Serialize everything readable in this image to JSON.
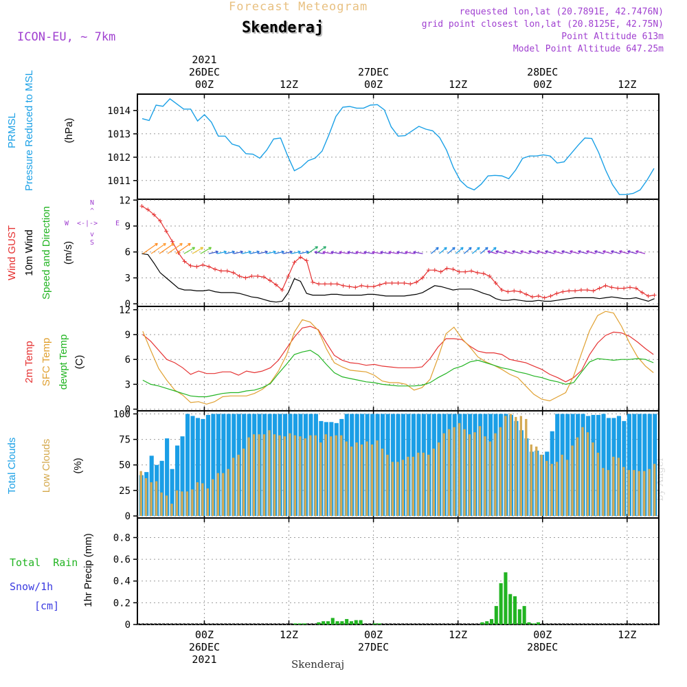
{
  "header": {
    "title": "Forecast Meteogram",
    "location": "Skenderaj",
    "model": "ICON-EU, ~ 7km",
    "requested": "requested lon,lat (20.7891E, 42.7476N)",
    "gridpoint": "grid point closest lon,lat (20.8125E, 42.75N)",
    "point_altitude": "Point Altitude 613m",
    "model_altitude": "Model Point Altitude 647.25m",
    "footer": "Skenderaj",
    "watermark": "by Angel",
    "compass": {
      "n": "N",
      "s": "S",
      "w": "W",
      "e": "E",
      "row": "<-|->",
      "up": "^",
      "down": "v"
    }
  },
  "time_axis": {
    "top_labels": [
      {
        "l1": "2021",
        "l2": "26DEC",
        "l3": "00Z"
      },
      {
        "l1": "",
        "l2": "",
        "l3": "12Z"
      },
      {
        "l1": "",
        "l2": "27DEC",
        "l3": "00Z"
      },
      {
        "l1": "",
        "l2": "",
        "l3": "12Z"
      },
      {
        "l1": "",
        "l2": "28DEC",
        "l3": "00Z"
      },
      {
        "l1": "",
        "l2": "",
        "l3": "12Z"
      }
    ],
    "bottom_labels": [
      {
        "l1": "00Z",
        "l2": "26DEC",
        "l3": "2021"
      },
      {
        "l1": "12Z",
        "l2": "",
        "l3": ""
      },
      {
        "l1": "00Z",
        "l2": "27DEC",
        "l3": ""
      },
      {
        "l1": "12Z",
        "l2": "",
        "l3": ""
      },
      {
        "l1": "00Z",
        "l2": "28DEC",
        "l3": ""
      },
      {
        "l1": "12Z",
        "l2": "",
        "l3": ""
      }
    ],
    "hours_before_first_tick": 9.5,
    "hours_after_last_tick": 4.5
  },
  "panel_labels": {
    "pressure": [
      {
        "text": "PRMSL",
        "color": "#1aa0e6"
      },
      {
        "text": "Pressure Reduced to MSL",
        "color": "#1aa0e6"
      },
      {
        "text": "(hPa)",
        "color": "#000000"
      }
    ],
    "wind": [
      {
        "text": "Wind GUST",
        "color": "#e53232"
      },
      {
        "text": "10m Wind",
        "color": "#000000"
      },
      {
        "text": "Speed and Direction",
        "color": "#22b422"
      },
      {
        "text": "(m/s)",
        "color": "#000000"
      }
    ],
    "temp": [
      {
        "text": "2m Temp",
        "color": "#e53232"
      },
      {
        "text": "SFC Temp",
        "color": "#e0a030"
      },
      {
        "text": "dewpt Temp",
        "color": "#22b422"
      },
      {
        "text": "(C)",
        "color": "#000000"
      }
    ],
    "clouds": [
      {
        "text": "Total Clouds",
        "color": "#1aa0e6"
      },
      {
        "text": "Low Clouds",
        "color": "#d4a84a"
      },
      {
        "text": "(%)",
        "color": "#000000"
      }
    ],
    "precip_left": [
      {
        "text": "Total  Rain",
        "color": "#22b422"
      },
      {
        "text": "Snow/1h",
        "color": "#3a3ae0"
      },
      {
        "text": "[cm]",
        "color": "#3a3ae0"
      }
    ],
    "precip_axis": "1hr Precip (mm)"
  },
  "colors": {
    "pressure": "#1aa0e6",
    "gust": "#e53232",
    "wind": "#000000",
    "temp2m": "#e53232",
    "sfctemp": "#e0a030",
    "dewpt": "#22b422",
    "total_clouds": "#1a9ee6",
    "low_clouds": "#d4aa55",
    "rain": "#22b422",
    "header_title": "#e8c080",
    "header_info": "#a040d0",
    "grid": "#9a9a9a"
  },
  "chart_data": [
    {
      "type": "line",
      "name": "pressure",
      "ylabel": "(hPa)",
      "ylim": [
        1010.2,
        1014.7
      ],
      "yticks": [
        1011,
        1012,
        1013,
        1014
      ],
      "series": [
        {
          "name": "PRMSL",
          "values": [
            1013.65,
            1013.57,
            1014.23,
            1014.18,
            1014.5,
            1014.28,
            1014.06,
            1014.06,
            1013.55,
            1013.82,
            1013.5,
            1012.9,
            1012.9,
            1012.56,
            1012.47,
            1012.15,
            1012.13,
            1011.96,
            1012.3,
            1012.78,
            1012.82,
            1012.08,
            1011.42,
            1011.58,
            1011.85,
            1011.96,
            1012.26,
            1012.96,
            1013.74,
            1014.14,
            1014.17,
            1014.1,
            1014.1,
            1014.23,
            1014.25,
            1014.03,
            1013.3,
            1012.9,
            1012.92,
            1013.12,
            1013.32,
            1013.2,
            1013.13,
            1012.84,
            1012.3,
            1011.55,
            1011.0,
            1010.72,
            1010.6,
            1010.84,
            1011.2,
            1011.22,
            1011.2,
            1011.08,
            1011.45,
            1011.95,
            1012.05,
            1012.05,
            1012.1,
            1012.05,
            1011.75,
            1011.8,
            1012.15,
            1012.5,
            1012.82,
            1012.8,
            1012.2,
            1011.45,
            1010.82,
            1010.4,
            1010.4,
            1010.45,
            1010.6,
            1011.02,
            1011.52
          ]
        }
      ]
    },
    {
      "type": "line",
      "name": "wind",
      "ylabel": "(m/s)",
      "ylim": [
        -0.3,
        12.1
      ],
      "yticks": [
        0,
        3,
        6,
        9,
        12
      ],
      "series": [
        {
          "name": "Wind GUST",
          "values": [
            11.3,
            10.9,
            10.3,
            9.6,
            8.4,
            7.2,
            5.9,
            4.9,
            4.4,
            4.3,
            4.5,
            4.3,
            4.0,
            3.8,
            3.8,
            3.6,
            3.2,
            3.0,
            3.2,
            3.2,
            3.1,
            2.7,
            2.2,
            1.6,
            3.2,
            4.8,
            5.4,
            5.0,
            2.5,
            2.3,
            2.3,
            2.3,
            2.3,
            2.1,
            2.0,
            1.9,
            2.1,
            2.0,
            2.0,
            2.2,
            2.4,
            2.4,
            2.4,
            2.4,
            2.3,
            2.5,
            3.0,
            3.9,
            3.9,
            3.7,
            4.1,
            4.0,
            3.7,
            3.7,
            3.8,
            3.6,
            3.5,
            3.2,
            2.4,
            1.6,
            1.4,
            1.5,
            1.4,
            1.1,
            0.8,
            0.9,
            0.7,
            0.9,
            1.2,
            1.4,
            1.5,
            1.5,
            1.6,
            1.6,
            1.5,
            1.8,
            2.1,
            1.9,
            1.8,
            1.8,
            1.9,
            1.8,
            1.3,
            0.9,
            1.0
          ]
        },
        {
          "name": "10m Wind",
          "values": [
            5.8,
            5.7,
            4.7,
            3.6,
            3.0,
            2.4,
            1.8,
            1.6,
            1.6,
            1.5,
            1.5,
            1.6,
            1.4,
            1.3,
            1.3,
            1.3,
            1.2,
            1.0,
            0.8,
            0.7,
            0.5,
            0.3,
            0.2,
            0.3,
            1.3,
            2.9,
            2.6,
            1.2,
            1.0,
            1.0,
            1.0,
            1.1,
            1.1,
            1.0,
            1.0,
            1.0,
            1.0,
            1.1,
            1.1,
            1.0,
            0.9,
            0.9,
            0.9,
            0.9,
            1.0,
            1.1,
            1.3,
            1.7,
            2.1,
            2.0,
            1.8,
            1.6,
            1.7,
            1.7,
            1.7,
            1.5,
            1.2,
            1.0,
            0.6,
            0.4,
            0.4,
            0.5,
            0.4,
            0.3,
            0.3,
            0.4,
            0.3,
            0.3,
            0.4,
            0.5,
            0.6,
            0.7,
            0.7,
            0.7,
            0.7,
            0.6,
            0.7,
            0.8,
            0.7,
            0.6,
            0.6,
            0.7,
            0.5,
            0.3,
            0.6
          ]
        }
      ]
    },
    {
      "type": "line",
      "name": "temperature",
      "ylabel": "(C)",
      "ylim": [
        -0.2,
        12.4
      ],
      "yticks": [
        0,
        3,
        6,
        9,
        12
      ],
      "series": [
        {
          "name": "2m Temp",
          "values": [
            9.0,
            8.2,
            7.1,
            6.0,
            5.6,
            5.0,
            4.2,
            4.6,
            4.3,
            4.3,
            4.5,
            4.5,
            4.1,
            4.6,
            4.4,
            4.6,
            5.0,
            5.9,
            7.3,
            8.7,
            9.8,
            10.0,
            9.6,
            8.0,
            6.5,
            5.9,
            5.6,
            5.5,
            5.3,
            5.4,
            5.2,
            5.1,
            5.0,
            5.0,
            5.0,
            5.1,
            6.1,
            7.5,
            8.5,
            8.5,
            8.4,
            7.6,
            7.0,
            6.8,
            6.8,
            6.6,
            6.0,
            5.8,
            5.6,
            5.2,
            4.8,
            4.2,
            3.8,
            3.3,
            3.8,
            4.7,
            6.6,
            8.0,
            8.9,
            9.3,
            9.2,
            8.8,
            8.1,
            7.3,
            6.6
          ]
        },
        {
          "name": "SFC Temp",
          "values": [
            9.4,
            7.1,
            4.9,
            3.5,
            2.3,
            1.7,
            0.8,
            0.9,
            0.6,
            0.9,
            1.5,
            1.6,
            1.6,
            1.6,
            1.9,
            2.4,
            3.2,
            4.6,
            6.5,
            9.3,
            10.8,
            10.5,
            9.5,
            7.3,
            5.6,
            5.1,
            4.7,
            4.6,
            4.5,
            4.1,
            3.4,
            3.2,
            3.2,
            3.0,
            2.3,
            2.6,
            3.6,
            6.2,
            9.1,
            9.9,
            8.5,
            7.5,
            6.3,
            5.7,
            5.3,
            4.8,
            4.2,
            3.8,
            2.8,
            1.8,
            1.2,
            1.0,
            1.5,
            2.0,
            4.0,
            6.8,
            9.5,
            11.3,
            11.8,
            11.6,
            10.0,
            8.0,
            6.3,
            5.2,
            4.4
          ]
        },
        {
          "name": "dewpt Temp",
          "values": [
            3.5,
            3.0,
            2.8,
            2.5,
            2.2,
            1.9,
            1.6,
            1.5,
            1.5,
            1.7,
            1.9,
            2.0,
            2.0,
            2.2,
            2.3,
            2.6,
            3.1,
            4.3,
            5.4,
            6.6,
            6.9,
            7.1,
            6.5,
            5.4,
            4.4,
            3.9,
            3.7,
            3.5,
            3.3,
            3.2,
            3.0,
            2.9,
            2.8,
            2.8,
            2.8,
            2.9,
            3.2,
            3.8,
            4.3,
            4.9,
            5.2,
            5.7,
            5.9,
            5.6,
            5.3,
            5.0,
            4.8,
            4.5,
            4.3,
            4.0,
            3.8,
            3.5,
            3.3,
            3.0,
            3.2,
            4.5,
            5.7,
            6.1,
            6.0,
            5.9,
            6.0,
            6.0,
            6.1,
            6.0,
            5.6
          ]
        }
      ]
    },
    {
      "type": "bar",
      "name": "clouds",
      "ylabel": "(%)",
      "ylim": [
        -2,
        103
      ],
      "yticks": [
        0,
        25,
        50,
        75,
        100
      ],
      "series": [
        {
          "name": "Total Clouds",
          "values": [
            40,
            43,
            59,
            50,
            54,
            76,
            46,
            69,
            78,
            100,
            98,
            96,
            95,
            99,
            100,
            100,
            100,
            100,
            100,
            100,
            100,
            100,
            100,
            100,
            100,
            100,
            100,
            100,
            100,
            100,
            100,
            100,
            100,
            100,
            100,
            93,
            92,
            92,
            91,
            95,
            100,
            100,
            100,
            100,
            100,
            100,
            100,
            100,
            100,
            100,
            100,
            100,
            100,
            100,
            100,
            100,
            100,
            100,
            100,
            100,
            100,
            100,
            100,
            100,
            100,
            100,
            100,
            100,
            100,
            100,
            100,
            100,
            99,
            93,
            84,
            76,
            63,
            64,
            60,
            63,
            83,
            100,
            100,
            100,
            100,
            100,
            100,
            98,
            99,
            99,
            100,
            96,
            96,
            98,
            93,
            100,
            100,
            100,
            100,
            100,
            100
          ]
        },
        {
          "name": "Low Clouds",
          "values": [
            44,
            37,
            33,
            34,
            23,
            20,
            12,
            25,
            24,
            24,
            26,
            33,
            32,
            27,
            36,
            42,
            42,
            46,
            57,
            60,
            66,
            77,
            80,
            80,
            80,
            84,
            80,
            79,
            78,
            81,
            79,
            78,
            76,
            79,
            79,
            72,
            80,
            78,
            79,
            79,
            73,
            68,
            72,
            70,
            73,
            70,
            74,
            66,
            60,
            53,
            53,
            55,
            58,
            58,
            62,
            62,
            60,
            66,
            72,
            81,
            85,
            87,
            91,
            85,
            80,
            82,
            88,
            78,
            73,
            81,
            87,
            98,
            100,
            97,
            98,
            95,
            70,
            68,
            60,
            54,
            51,
            53,
            60,
            55,
            69,
            77,
            87,
            82,
            72,
            62,
            47,
            45,
            58,
            57,
            48,
            45,
            45,
            44,
            44,
            46,
            51
          ]
        }
      ]
    },
    {
      "type": "bar",
      "name": "precipitation",
      "ylabel": "1hr Precip (mm)",
      "ylim": [
        0,
        0.98
      ],
      "yticks": [
        0,
        0.2,
        0.4,
        0.6,
        0.8
      ],
      "series": [
        {
          "name": "1hr Precip",
          "values": [
            0,
            0,
            0,
            0,
            0,
            0,
            0,
            0,
            0,
            0,
            0,
            0,
            0,
            0,
            0,
            0,
            0,
            0,
            0,
            0,
            0,
            0,
            0,
            0,
            0,
            0,
            0,
            0,
            0,
            0,
            0,
            0,
            0,
            0.01,
            0.01,
            0.01,
            0,
            0,
            0.02,
            0.03,
            0.03,
            0.06,
            0.03,
            0.03,
            0.05,
            0.03,
            0.04,
            0.04,
            0,
            0,
            0.01,
            0.01,
            0,
            0,
            0,
            0,
            0,
            0,
            0,
            0,
            0,
            0,
            0,
            0,
            0,
            0,
            0,
            0,
            0,
            0,
            0,
            0,
            0,
            0.02,
            0.03,
            0.05,
            0.17,
            0.38,
            0.48,
            0.28,
            0.26,
            0.14,
            0.17,
            0.02,
            0.01,
            0.02,
            0,
            0,
            0,
            0,
            0,
            0,
            0,
            0,
            0,
            0,
            0,
            0,
            0,
            0,
            0,
            0,
            0,
            0,
            0,
            0,
            0,
            0,
            0,
            0,
            0
          ]
        }
      ]
    }
  ]
}
